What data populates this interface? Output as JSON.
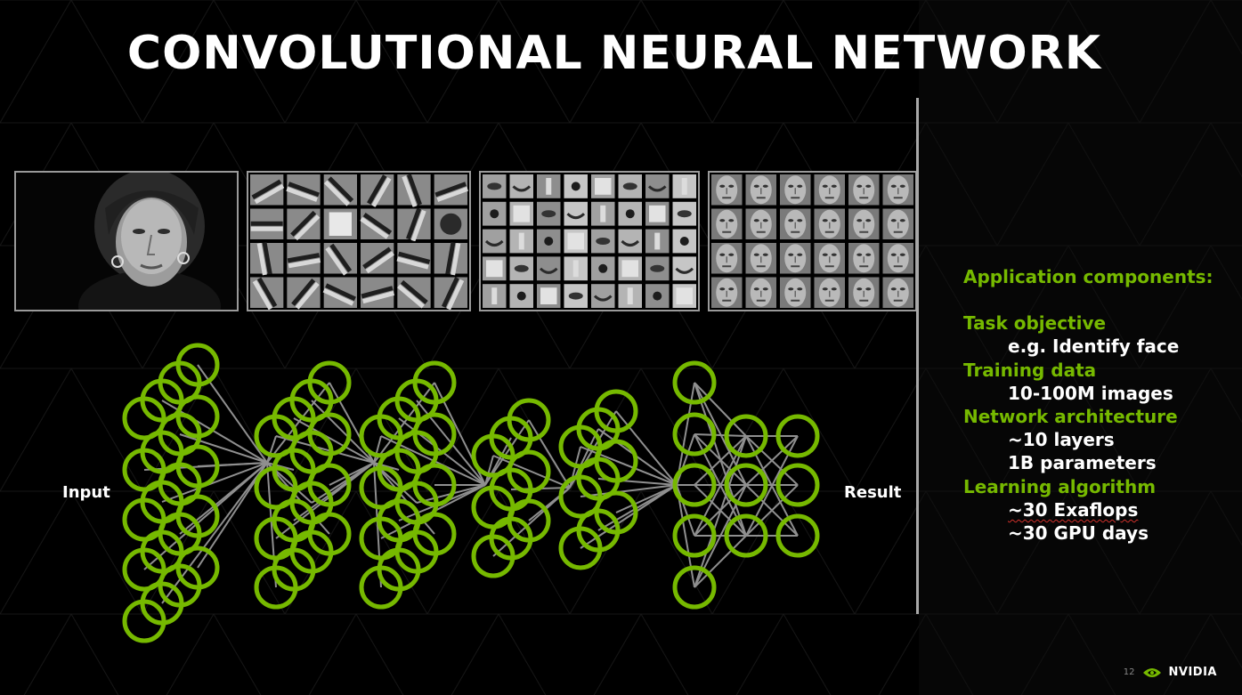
{
  "slide": {
    "title": "CONVOLUTIONAL NEURAL NETWORK",
    "input_label": "Input",
    "result_label": "Result",
    "page_number": "12",
    "brand": "NVIDIA"
  },
  "colors": {
    "background": "#000000",
    "accent": "#76b900",
    "text": "#ffffff"
  },
  "panels": [
    "face-photo",
    "edge-filters",
    "facial-part-features",
    "face-templates"
  ],
  "side": {
    "heading": "Application components:",
    "sections": [
      {
        "heading": "Task objective",
        "items": [
          "e.g. Identify face"
        ]
      },
      {
        "heading": "Training data",
        "items": [
          "10-100M images"
        ]
      },
      {
        "heading": "Network architecture",
        "items": [
          "~10 layers",
          "1B parameters"
        ]
      },
      {
        "heading": "Learning algorithm",
        "items": [
          "~30 Exaflops",
          "~30 GPU days"
        ]
      }
    ]
  },
  "icons": [
    "nvidia-eye-icon"
  ]
}
